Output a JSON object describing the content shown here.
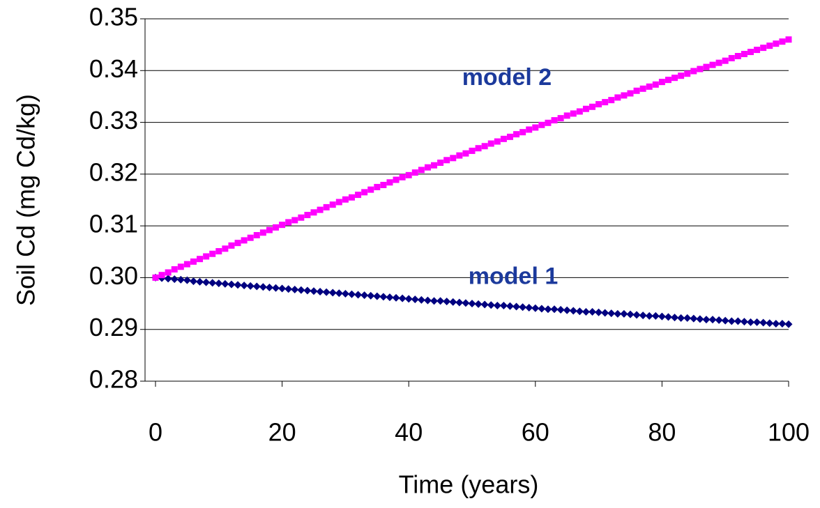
{
  "chart_data": {
    "type": "scatter",
    "ylabel": "Soil Cd (mg Cd/kg)",
    "xlabel": "Time (years)",
    "xlim": [
      0,
      100
    ],
    "xticks": [
      0,
      20,
      40,
      60,
      80,
      100
    ],
    "ylim": [
      0.28,
      0.35
    ],
    "yticks": [
      0.28,
      0.29,
      {
        "value": 0.3,
        "label": "0.30"
      },
      0.31,
      0.32,
      0.33,
      0.34,
      0.35
    ],
    "grid": true,
    "x": [
      0,
      1,
      2,
      3,
      4,
      5,
      6,
      7,
      8,
      9,
      10,
      11,
      12,
      13,
      14,
      15,
      16,
      17,
      18,
      19,
      20,
      21,
      22,
      23,
      24,
      25,
      26,
      27,
      28,
      29,
      30,
      31,
      32,
      33,
      34,
      35,
      36,
      37,
      38,
      39,
      40,
      41,
      42,
      43,
      44,
      45,
      46,
      47,
      48,
      49,
      50,
      51,
      52,
      53,
      54,
      55,
      56,
      57,
      58,
      59,
      60,
      61,
      62,
      63,
      64,
      65,
      66,
      67,
      68,
      69,
      70,
      71,
      72,
      73,
      74,
      75,
      76,
      77,
      78,
      79,
      80,
      81,
      82,
      83,
      84,
      85,
      86,
      87,
      88,
      89,
      90,
      91,
      92,
      93,
      94,
      95,
      96,
      97,
      98,
      99,
      100
    ],
    "series": [
      {
        "name": "model 1",
        "color": "#000080",
        "marker": "diamond",
        "values": [
          0.3,
          0.2999,
          0.2998,
          0.2997,
          0.2996,
          0.2995,
          0.2993,
          0.2992,
          0.2991,
          0.299,
          0.2989,
          0.2988,
          0.2987,
          0.2986,
          0.2985,
          0.2984,
          0.2983,
          0.2982,
          0.2981,
          0.298,
          0.2979,
          0.2978,
          0.2977,
          0.2976,
          0.2975,
          0.2974,
          0.2973,
          0.2972,
          0.2971,
          0.297,
          0.2969,
          0.2968,
          0.2967,
          0.2966,
          0.2965,
          0.2964,
          0.2963,
          0.2962,
          0.2961,
          0.296,
          0.2959,
          0.2958,
          0.2957,
          0.2956,
          0.2955,
          0.2955,
          0.2954,
          0.2953,
          0.2952,
          0.2951,
          0.295,
          0.2949,
          0.2948,
          0.2947,
          0.2946,
          0.2946,
          0.2945,
          0.2944,
          0.2943,
          0.2942,
          0.2941,
          0.294,
          0.2939,
          0.2939,
          0.2938,
          0.2937,
          0.2936,
          0.2935,
          0.2934,
          0.2934,
          0.2933,
          0.2932,
          0.2931,
          0.293,
          0.293,
          0.2929,
          0.2928,
          0.2927,
          0.2926,
          0.2926,
          0.2925,
          0.2924,
          0.2923,
          0.2922,
          0.2922,
          0.2921,
          0.292,
          0.2919,
          0.2919,
          0.2918,
          0.2917,
          0.2916,
          0.2916,
          0.2915,
          0.2914,
          0.2914,
          0.2913,
          0.2912,
          0.2911,
          0.2911,
          0.291
        ]
      },
      {
        "name": "model 2",
        "color": "#ff00ff",
        "marker": "square",
        "values": [
          0.3,
          0.3005,
          0.301,
          0.3016,
          0.3021,
          0.3026,
          0.3031,
          0.3036,
          0.3041,
          0.3046,
          0.3051,
          0.3056,
          0.3062,
          0.3067,
          0.3072,
          0.3077,
          0.3082,
          0.3087,
          0.3092,
          0.3097,
          0.3102,
          0.3107,
          0.3111,
          0.3116,
          0.3121,
          0.3126,
          0.3131,
          0.3136,
          0.3141,
          0.3146,
          0.3151,
          0.3155,
          0.316,
          0.3165,
          0.317,
          0.3175,
          0.3179,
          0.3184,
          0.3189,
          0.3194,
          0.3198,
          0.3203,
          0.3208,
          0.3213,
          0.3217,
          0.3222,
          0.3227,
          0.3231,
          0.3236,
          0.324,
          0.3245,
          0.325,
          0.3254,
          0.3259,
          0.3263,
          0.3268,
          0.3272,
          0.3277,
          0.3281,
          0.3286,
          0.329,
          0.3295,
          0.3299,
          0.3304,
          0.3308,
          0.3313,
          0.3317,
          0.3321,
          0.3326,
          0.333,
          0.3335,
          0.3339,
          0.3343,
          0.3348,
          0.3352,
          0.3356,
          0.3361,
          0.3365,
          0.3369,
          0.3373,
          0.3378,
          0.3382,
          0.3386,
          0.339,
          0.3394,
          0.3399,
          0.3403,
          0.3407,
          0.3411,
          0.3415,
          0.3419,
          0.3424,
          0.3428,
          0.3432,
          0.3436,
          0.344,
          0.3444,
          0.3448,
          0.3452,
          0.3456,
          0.346
        ]
      }
    ]
  }
}
